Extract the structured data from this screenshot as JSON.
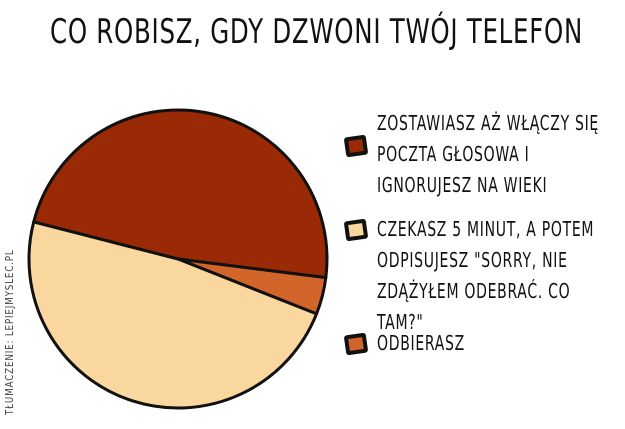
{
  "chart_data": {
    "type": "pie",
    "title": "CO ROBISZ, GDY DZWONI TWÓJ TELEFON",
    "legend_placement": "right",
    "slices": [
      {
        "label": "ZOSTAWIASZ AŻ WŁĄCZY SIĘ\nPOCZTA GŁOSOWA I\nIGNORUJESZ NA WIEKI",
        "value": 48,
        "color": "#9a2a06"
      },
      {
        "label": "ODBIERASZ",
        "value": 4,
        "color": "#d2662a"
      },
      {
        "label": "CZEKASZ 5 MINUT, A POTEM\nODPISUJESZ \"SORRY, NIE\nZDĄŻYŁEM ODEBRAĆ. CO TAM?\"",
        "value": 48,
        "color": "#f9d79e"
      }
    ]
  },
  "credit": "TŁUMACZENIE: LEPIEJMYSLEC.PL"
}
